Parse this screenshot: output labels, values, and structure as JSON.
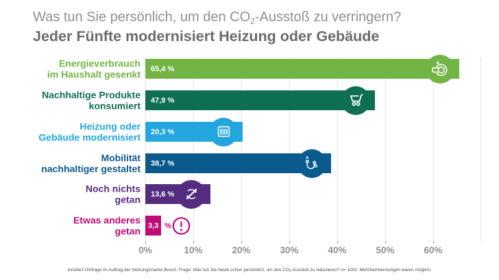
{
  "header": {
    "title": {
      "pre": "Was tun Sie persönlich, um den CO",
      "sub": "2",
      "post": "-Ausstoß zu verringern?"
    },
    "subtitle": "Jeder Fünfte modernisiert Heizung oder Gebäude"
  },
  "chart_data": {
    "type": "bar",
    "orientation": "horizontal",
    "title": "Was tun Sie persönlich, um den CO2-Ausstoß zu verringern?",
    "subtitle": "Jeder Fünfte modernisiert Heizung oder Gebäude",
    "categories": [
      "Energieverbrauch im Haushalt gesenkt",
      "Nachhaltige Produkte konsumiert",
      "Heizung oder Gebäude modernisiert",
      "Mobilität nachhaltiger gestaltet",
      "Noch nichts getan",
      "Etwas anderes getan"
    ],
    "values": [
      65.4,
      47.9,
      20.3,
      38.7,
      13.6,
      3.3
    ],
    "value_labels": [
      "65,4 %",
      "47,9 %",
      "20,3 %",
      "38,7 %",
      "13,6 %",
      "3,3 %"
    ],
    "xlim": [
      0,
      70
    ],
    "x_tick_labels": [
      "0%",
      "10%",
      "20%",
      "30%",
      "40%",
      "50%",
      "60%"
    ],
    "grid": true,
    "legend": false,
    "unit": "%"
  },
  "bars": [
    {
      "label_line1": "Energieverbrauch",
      "label_line2": "im Haushalt gesenkt",
      "value_label": "65,4 %",
      "color": "#72b544",
      "icon": "dishes-water-drop-icon"
    },
    {
      "label_line1": "Nachhaltige Produkte",
      "label_line2": "konsumiert",
      "value_label": "47,9 %",
      "color": "#0e6f55",
      "icon": "shopping-cart-icon"
    },
    {
      "label_line1": "Heizung oder",
      "label_line2": "Gebäude modernisiert",
      "value_label": "20,3 %",
      "color": "#23a6de",
      "icon": "radiator-icon"
    },
    {
      "label_line1": "Mobilität",
      "label_line2": "nachhaltiger gestaltet",
      "value_label": "38,7 %",
      "color": "#0a5a8e",
      "icon": "route-a-to-b-icon"
    },
    {
      "label_line1": "Noch nichts",
      "label_line2": "getan",
      "value_label": "13,6 %",
      "color": "#552d80",
      "icon": "no-action-cycle-icon"
    },
    {
      "label_line1": "Etwas anderes",
      "label_line2": "getan",
      "value_label": "3,3",
      "value_suffix": "%",
      "color": "#c00a77",
      "icon": "exclamation-icon"
    }
  ],
  "footnote": {
    "pre": "Innofact Umfrage im Auftrag der Heizungsmarke Bosch. Frage: Was tun Sie heute schon persönlich, um den CO",
    "sub": "2",
    "post": "-Ausstoß zu reduzieren? n= 1002. Mehrfachnennungen waren möglich."
  }
}
